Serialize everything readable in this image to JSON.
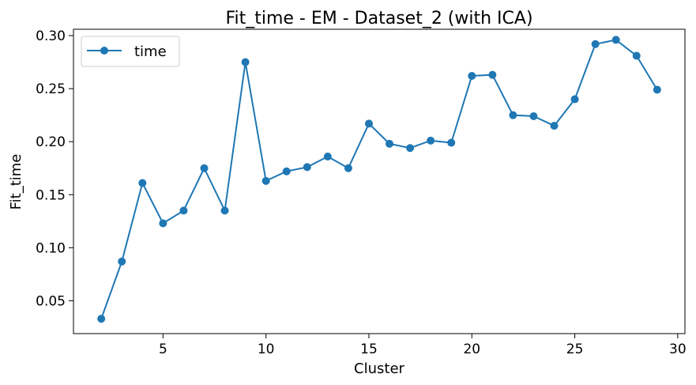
{
  "chart_data": {
    "type": "line",
    "title": "Fit_time - EM - Dataset_2 (with ICA)",
    "xlabel": "Cluster",
    "ylabel": "Fit_time",
    "xlim": [
      0.65,
      30.35
    ],
    "ylim": [
      0.019,
      0.306
    ],
    "x_ticks": [
      5,
      10,
      15,
      20,
      25,
      30
    ],
    "y_ticks": [
      0.05,
      0.1,
      0.15,
      0.2,
      0.25,
      0.3
    ],
    "grid": false,
    "legend_position": "top-left",
    "x": [
      2,
      3,
      4,
      5,
      6,
      7,
      8,
      9,
      10,
      11,
      12,
      13,
      14,
      15,
      16,
      17,
      18,
      19,
      20,
      21,
      22,
      23,
      24,
      25,
      26,
      27,
      28,
      29
    ],
    "series": [
      {
        "name": "time",
        "color": "#1f77b4",
        "marker": "circle",
        "values": [
          0.033,
          0.087,
          0.161,
          0.123,
          0.135,
          0.175,
          0.135,
          0.275,
          0.163,
          0.172,
          0.176,
          0.186,
          0.175,
          0.217,
          0.198,
          0.194,
          0.201,
          0.199,
          0.262,
          0.263,
          0.225,
          0.224,
          0.215,
          0.24,
          0.292,
          0.296,
          0.281,
          0.249
        ]
      }
    ]
  }
}
